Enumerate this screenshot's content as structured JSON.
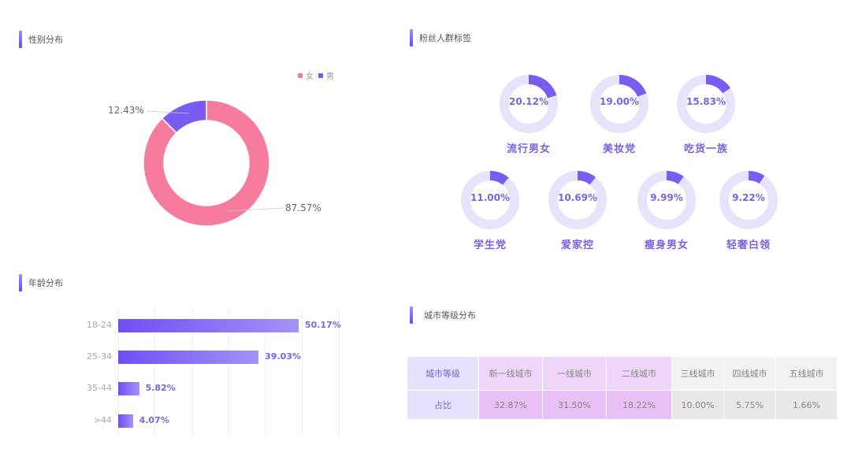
{
  "sections": {
    "gender": {
      "title": "性别分布"
    },
    "fan_tags": {
      "title": "粉丝人群标签"
    },
    "age": {
      "title": "年龄分布"
    },
    "city": {
      "title": "城市等级分布"
    }
  },
  "colors": {
    "accent": "#7a5cf2",
    "female": "#f77b9c",
    "male": "#7a5cf2",
    "ring_track": "#e7e3fb",
    "tag_text": "#7b5fe6"
  },
  "gender_legend": [
    {
      "label": "女",
      "color": "#f77b9c"
    },
    {
      "label": "男",
      "color": "#7a5cf2"
    }
  ],
  "gender_labels": {
    "female": "87.57%",
    "male": "12.43%"
  },
  "fan_tags": [
    {
      "name": "流行男女",
      "pct": "20.12%",
      "value": 20.12
    },
    {
      "name": "美妆党",
      "pct": "19.00%",
      "value": 19.0
    },
    {
      "name": "吃货一族",
      "pct": "15.83%",
      "value": 15.83
    },
    {
      "name": "学生党",
      "pct": "11.00%",
      "value": 11.0
    },
    {
      "name": "爱家控",
      "pct": "10.69%",
      "value": 10.69
    },
    {
      "name": "瘦身男女",
      "pct": "9.99%",
      "value": 9.99
    },
    {
      "name": "轻奢白领",
      "pct": "9.22%",
      "value": 9.22
    }
  ],
  "age_rows": [
    {
      "label": "18-24",
      "pct": "50.17%",
      "value": 50.17
    },
    {
      "label": "25-34",
      "pct": "39.03%",
      "value": 39.03
    },
    {
      "label": "35-44",
      "pct": "5.82%",
      "value": 5.82
    },
    {
      "label": ">44",
      "pct": "4.07%",
      "value": 4.07
    }
  ],
  "city_table": {
    "header_label": "城市等级",
    "value_label": "占比",
    "columns": [
      "新一线城市",
      "一线城市",
      "二线城市",
      "三线城市",
      "四线城市",
      "五线城市"
    ],
    "values": [
      "32.87%",
      "31.50%",
      "18.22%",
      "10.00%",
      "5.75%",
      "1.66%"
    ]
  },
  "chart_data": [
    {
      "type": "pie",
      "title": "性别分布",
      "categories": [
        "女",
        "男"
      ],
      "values": [
        87.57,
        12.43
      ],
      "legend_position": "top-right",
      "donut": true
    },
    {
      "type": "pie",
      "title": "粉丝人群标签",
      "categories": [
        "流行男女",
        "美妆党",
        "吃货一族",
        "学生党",
        "爱家控",
        "瘦身男女",
        "轻奢白领"
      ],
      "values": [
        20.12,
        19.0,
        15.83,
        11.0,
        10.69,
        9.99,
        9.22
      ],
      "note": "each category rendered as its own progress donut"
    },
    {
      "type": "bar",
      "orientation": "horizontal",
      "title": "年龄分布",
      "categories": [
        "18-24",
        "25-34",
        "35-44",
        ">44"
      ],
      "values": [
        50.17,
        39.03,
        5.82,
        4.07
      ],
      "xlim": [
        0,
        60
      ],
      "grid": true
    },
    {
      "type": "table",
      "title": "城市等级分布",
      "categories": [
        "新一线城市",
        "一线城市",
        "二线城市",
        "三线城市",
        "四线城市",
        "五线城市"
      ],
      "values": [
        32.87,
        31.5,
        18.22,
        10.0,
        5.75,
        1.66
      ]
    }
  ]
}
